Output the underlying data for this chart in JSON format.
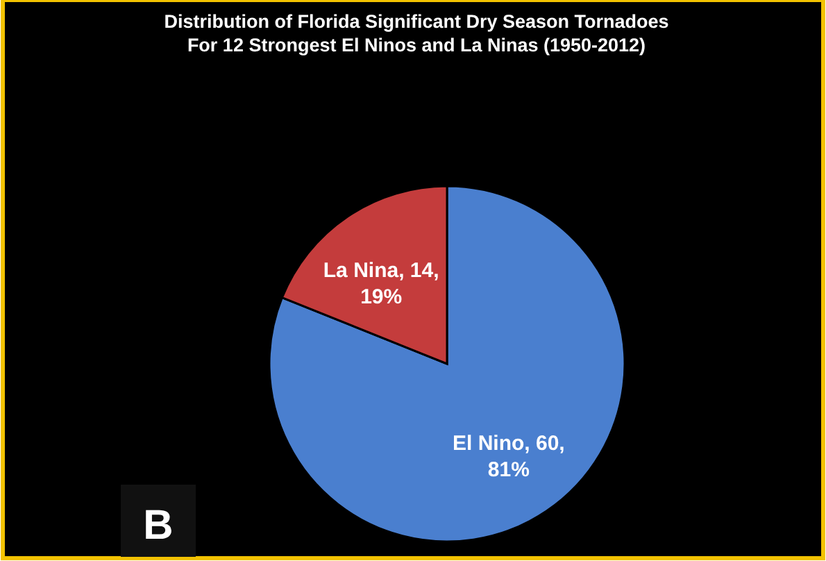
{
  "chart_data": {
    "type": "pie",
    "title": "Distribution of  Florida Significant  Dry Season Tornadoes\nFor  12 Strongest El Ninos and La Ninas (1950-2012)",
    "categories": [
      "El Nino",
      "La Nina"
    ],
    "values": [
      60,
      14
    ],
    "value_labels": [
      ", 60,\n81%",
      ", 14,\n19%"
    ],
    "colors": [
      "#4a7fcf",
      "#c43c3c"
    ],
    "annotations": [
      "B"
    ]
  }
}
